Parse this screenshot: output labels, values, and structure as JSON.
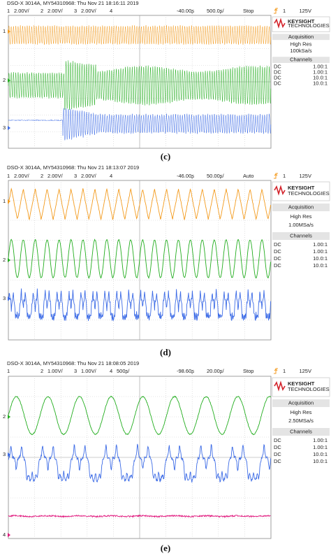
{
  "panels": [
    {
      "label": "(c)",
      "header": "DSO-X 3014A, MY54310968: Thu Nov 21 18:16:11 2019",
      "channels": [
        {
          "num": "1",
          "scale": "2.00V/"
        },
        {
          "num": "2",
          "scale": "2.00V/"
        },
        {
          "num": "3",
          "scale": "2.00V/"
        },
        {
          "num": "4"
        }
      ],
      "delay": "-40.00ʂ",
      "timebase": "500.0ʂ/",
      "mode": "Stop",
      "trigger": "1",
      "trigger_level": "125V",
      "markers": [
        "1",
        "2",
        "3"
      ],
      "sidebar": {
        "brand": "KEYSIGHT",
        "brand_sub": "TECHNOLOGIES",
        "acq_title": "Acquisition",
        "acq_mode": "High Res",
        "sample_rate": "100kSa/s",
        "channels_title": "Channels",
        "rows": [
          {
            "coupling": "DC",
            "probe": "1.00:1"
          },
          {
            "coupling": "DC",
            "probe": "1.00:1"
          },
          {
            "coupling": "DC",
            "probe": "10.0:1"
          },
          {
            "coupling": "DC",
            "probe": "10.0:1"
          }
        ]
      }
    },
    {
      "label": "(d)",
      "header": "DSO-X 3014A, MY54310968: Thu Nov 21 18:13:07 2019",
      "channels": [
        {
          "num": "1",
          "scale": "2.00V/"
        },
        {
          "num": "2",
          "scale": "2.00V/"
        },
        {
          "num": "3",
          "scale": "2.00V/"
        },
        {
          "num": "4"
        }
      ],
      "delay": "-46.00ʂ",
      "timebase": "50.00ʂ/",
      "mode": "Auto",
      "trigger": "1",
      "trigger_level": "125V",
      "markers": [
        "1",
        "2",
        "3"
      ],
      "sidebar": {
        "brand": "KEYSIGHT",
        "brand_sub": "TECHNOLOGIES",
        "acq_title": "Acquisition",
        "acq_mode": "High Res",
        "sample_rate": "1.00MSa/s",
        "channels_title": "Channels",
        "rows": [
          {
            "coupling": "DC",
            "probe": "1.00:1"
          },
          {
            "coupling": "DC",
            "probe": "1.00:1"
          },
          {
            "coupling": "DC",
            "probe": "10.0:1"
          },
          {
            "coupling": "DC",
            "probe": "10.0:1"
          }
        ]
      }
    },
    {
      "label": "(e)",
      "header": "DSO-X 3014A, MY54310968: Thu Nov 21 18:08:05 2019",
      "channels": [
        {
          "num": "1"
        },
        {
          "num": "2",
          "scale": "1.00V/"
        },
        {
          "num": "3",
          "scale": "1.00V/"
        },
        {
          "num": "4",
          "scale": "500ʂ/"
        }
      ],
      "delay": "-98.60ʂ",
      "timebase": "20.00ʂ/",
      "mode": "Stop",
      "trigger": "1",
      "trigger_level": "125V",
      "markers": [
        "2",
        "3",
        "4"
      ],
      "sidebar": {
        "brand": "KEYSIGHT",
        "brand_sub": "TECHNOLOGIES",
        "acq_title": "Acquisition",
        "acq_mode": "High Res",
        "sample_rate": "2.50MSa/s",
        "channels_title": "Channels",
        "rows": [
          {
            "coupling": "DC",
            "probe": "1.00:1"
          },
          {
            "coupling": "DC",
            "probe": "1.00:1"
          },
          {
            "coupling": "DC",
            "probe": "10.0:1"
          },
          {
            "coupling": "DC",
            "probe": "10.0:1"
          }
        ]
      }
    }
  ]
}
